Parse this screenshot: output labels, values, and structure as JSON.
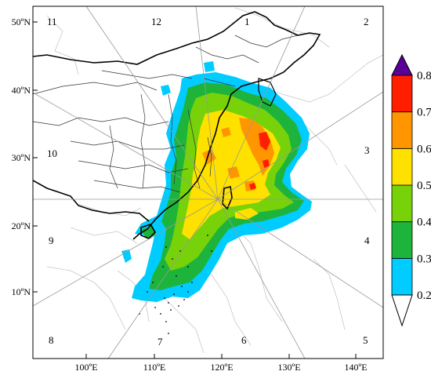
{
  "map": {
    "lat_labels": [
      "50ºN",
      "40ºN",
      "30ºN",
      "20ºN",
      "10ºN"
    ],
    "lon_labels": [
      "100ºE",
      "110ºE",
      "120ºE",
      "130ºE",
      "140ºE"
    ],
    "sector_labels": [
      "1",
      "2",
      "3",
      "4",
      "5",
      "6",
      "7",
      "8",
      "9",
      "10",
      "11",
      "12"
    ]
  },
  "colorbar": {
    "tick_labels": [
      "0.2",
      "0.3",
      "0.4",
      "0.5",
      "0.6",
      "0.7",
      "0.8"
    ],
    "colors": [
      "#00ccff",
      "#1eb43c",
      "#78d20a",
      "#ffe100",
      "#ff9600",
      "#ff1e00"
    ],
    "extend_high_color": "#5a0096",
    "extend_low_color": "#ffffff"
  }
}
